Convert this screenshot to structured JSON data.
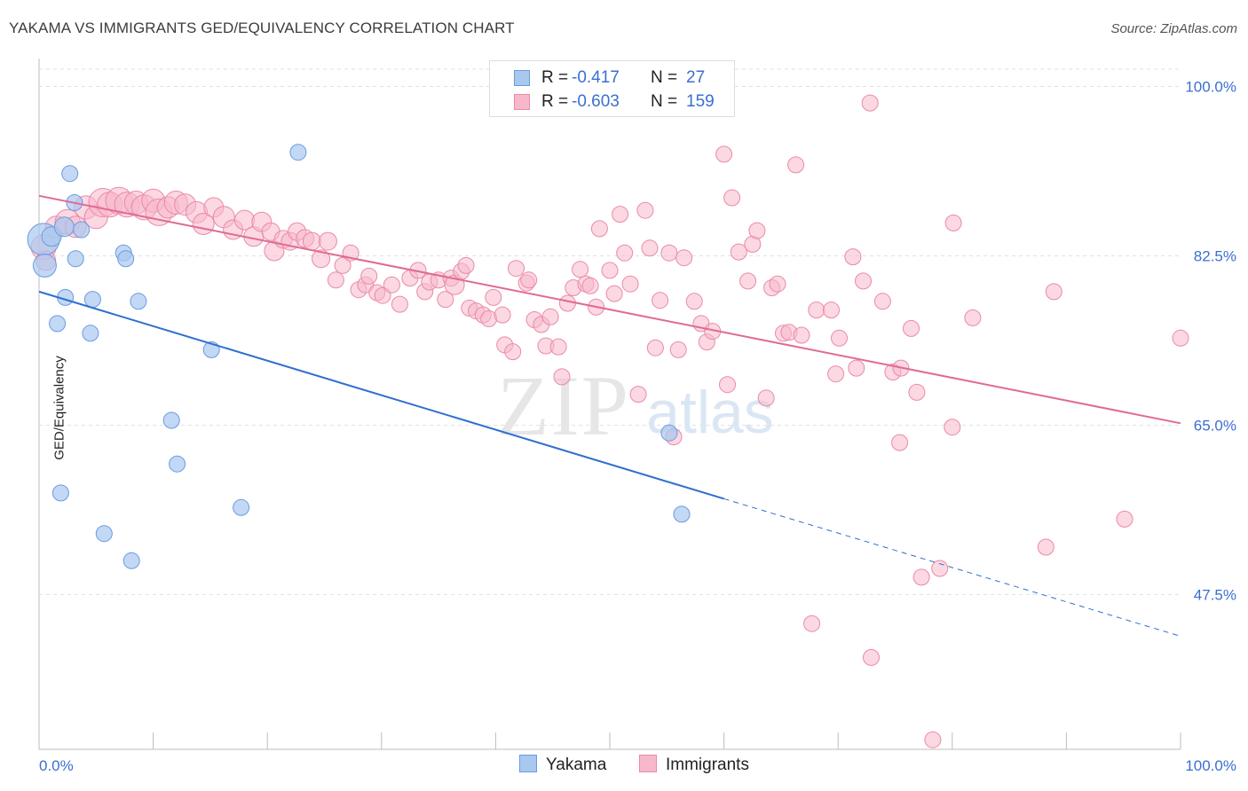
{
  "header": {
    "title": "YAKAMA VS IMMIGRANTS GED/EQUIVALENCY CORRELATION CHART",
    "source": "Source: ZipAtlas.com"
  },
  "colors": {
    "yakama_fill": "#a8c8f0",
    "yakama_stroke": "#6a9be0",
    "yakama_line": "#2f6fd0",
    "immigrants_fill": "#f7b8cb",
    "immigrants_stroke": "#ea8aa8",
    "immigrants_line": "#e06a93",
    "tick_label": "#3a6fd0",
    "grid": "#e2e2e2"
  },
  "stats": {
    "rows": [
      {
        "r_label": "R =",
        "r_value": "-0.417",
        "n_label": "N =",
        "n_value": "27"
      },
      {
        "r_label": "R =",
        "r_value": "-0.603",
        "n_label": "N =",
        "n_value": "159"
      }
    ]
  },
  "legend": {
    "items": [
      "Yakama",
      "Immigrants"
    ]
  },
  "watermark": {
    "zip": "ZIP",
    "atlas": "atlas"
  },
  "chart_data": {
    "type": "scatter",
    "title": "YAKAMA VS IMMIGRANTS GED/EQUIVALENCY CORRELATION CHART",
    "xlabel": "",
    "ylabel": "GED/Equivalency",
    "xlim": [
      0,
      100
    ],
    "ylim": [
      28,
      100
    ],
    "x_tick_labels": [
      "0.0%",
      "100.0%"
    ],
    "y_ticks": [
      47.5,
      65.0,
      82.5,
      100.0
    ],
    "y_tick_labels": [
      "47.5%",
      "65.0%",
      "82.5%",
      "100.0%"
    ],
    "grid": true,
    "legend_position": "bottom-center",
    "series": [
      {
        "name": "Yakama",
        "r": -0.417,
        "n": 27,
        "trend": {
          "x0": 0,
          "y0": 78.8,
          "x1": 60,
          "y1": 57.4,
          "dashed_to_x": 100,
          "dashed_to_y": 43.2
        },
        "points": [
          [
            0.4,
            84.2,
            18
          ],
          [
            0.5,
            81.5,
            13
          ],
          [
            1.1,
            84.5,
            11
          ],
          [
            2.2,
            85.5,
            11
          ],
          [
            2.7,
            91.0,
            9
          ],
          [
            3.1,
            88.0,
            9
          ],
          [
            3.7,
            85.2,
            9
          ],
          [
            3.2,
            82.2,
            9
          ],
          [
            2.3,
            78.2,
            9
          ],
          [
            4.7,
            78.0,
            9
          ],
          [
            1.6,
            75.5,
            9
          ],
          [
            4.5,
            74.5,
            9
          ],
          [
            7.4,
            82.8,
            9
          ],
          [
            7.6,
            82.2,
            9
          ],
          [
            8.7,
            77.8,
            9
          ],
          [
            15.1,
            72.8,
            9
          ],
          [
            22.7,
            93.2,
            9
          ],
          [
            11.6,
            65.5,
            9
          ],
          [
            12.1,
            61.0,
            9
          ],
          [
            1.9,
            58.0,
            9
          ],
          [
            17.7,
            56.5,
            9
          ],
          [
            5.7,
            53.8,
            9
          ],
          [
            8.1,
            51.0,
            9
          ],
          [
            55.2,
            64.2,
            9
          ],
          [
            56.3,
            55.8,
            9
          ]
        ]
      },
      {
        "name": "Immigrants",
        "r": -0.603,
        "n": 159,
        "trend": {
          "x0": 0,
          "y0": 88.7,
          "x1": 100,
          "y1": 65.2
        },
        "points": [
          [
            0.4,
            83.4,
            14
          ],
          [
            0.6,
            82.0,
            11
          ],
          [
            1.5,
            85.5,
            12
          ],
          [
            2.5,
            86.0,
            14
          ],
          [
            3.2,
            85.5,
            12
          ],
          [
            4.1,
            87.5,
            13
          ],
          [
            5.0,
            86.5,
            13
          ],
          [
            5.6,
            88.0,
            16
          ],
          [
            6.2,
            87.8,
            14
          ],
          [
            7.0,
            88.2,
            15
          ],
          [
            7.7,
            87.8,
            14
          ],
          [
            8.5,
            88.0,
            13
          ],
          [
            9.2,
            87.5,
            14
          ],
          [
            10.0,
            88.2,
            13
          ],
          [
            10.5,
            87.0,
            15
          ],
          [
            11.3,
            87.5,
            12
          ],
          [
            12.0,
            88.0,
            13
          ],
          [
            12.8,
            87.8,
            12
          ],
          [
            13.8,
            87.0,
            12
          ],
          [
            14.4,
            85.8,
            12
          ],
          [
            15.3,
            87.5,
            11
          ],
          [
            16.2,
            86.5,
            12
          ],
          [
            17.0,
            85.2,
            11
          ],
          [
            18.0,
            86.2,
            11
          ],
          [
            18.8,
            84.5,
            11
          ],
          [
            19.5,
            86.0,
            11
          ],
          [
            20.3,
            85.0,
            10
          ],
          [
            20.6,
            83.0,
            11
          ],
          [
            21.4,
            84.2,
            10
          ],
          [
            22.0,
            84.0,
            10
          ],
          [
            22.6,
            85.0,
            10
          ],
          [
            23.3,
            84.3,
            10
          ],
          [
            23.9,
            84.0,
            10
          ],
          [
            24.7,
            82.2,
            10
          ],
          [
            25.3,
            84.0,
            10
          ],
          [
            26.0,
            80.0,
            9
          ],
          [
            26.6,
            81.5,
            9
          ],
          [
            27.3,
            82.8,
            9
          ],
          [
            28.0,
            79.0,
            9
          ],
          [
            28.6,
            79.5,
            9
          ],
          [
            28.9,
            80.4,
            9
          ],
          [
            29.6,
            78.7,
            9
          ],
          [
            30.1,
            78.4,
            9
          ],
          [
            30.9,
            79.5,
            9
          ],
          [
            31.6,
            77.5,
            9
          ],
          [
            32.5,
            80.2,
            9
          ],
          [
            33.2,
            81.0,
            9
          ],
          [
            33.8,
            78.8,
            9
          ],
          [
            34.2,
            79.8,
            9
          ],
          [
            35.0,
            80.0,
            9
          ],
          [
            35.6,
            78.0,
            9
          ],
          [
            36.1,
            80.2,
            9
          ],
          [
            36.4,
            79.5,
            11
          ],
          [
            37.0,
            80.9,
            9
          ],
          [
            37.4,
            81.5,
            9
          ],
          [
            37.7,
            77.1,
            9
          ],
          [
            38.3,
            76.8,
            9
          ],
          [
            38.9,
            76.4,
            9
          ],
          [
            39.4,
            76.0,
            9
          ],
          [
            39.8,
            78.2,
            9
          ],
          [
            40.6,
            76.4,
            9
          ],
          [
            40.8,
            73.3,
            9
          ],
          [
            41.5,
            72.6,
            9
          ],
          [
            41.8,
            81.2,
            9
          ],
          [
            42.7,
            79.7,
            9
          ],
          [
            42.9,
            80.0,
            9
          ],
          [
            43.4,
            75.9,
            9
          ],
          [
            44.0,
            75.4,
            9
          ],
          [
            44.4,
            73.2,
            9
          ],
          [
            44.8,
            76.2,
            9
          ],
          [
            45.5,
            73.1,
            9
          ],
          [
            45.8,
            70.0,
            9
          ],
          [
            46.3,
            77.6,
            9
          ],
          [
            46.8,
            79.2,
            9
          ],
          [
            47.4,
            81.1,
            9
          ],
          [
            47.9,
            79.6,
            9
          ],
          [
            48.3,
            79.4,
            9
          ],
          [
            48.8,
            77.2,
            9
          ],
          [
            49.1,
            85.3,
            9
          ],
          [
            50.0,
            81.0,
            9
          ],
          [
            50.4,
            78.6,
            9
          ],
          [
            50.9,
            86.8,
            9
          ],
          [
            51.3,
            82.8,
            9
          ],
          [
            51.8,
            79.6,
            9
          ],
          [
            52.5,
            68.2,
            9
          ],
          [
            53.1,
            87.2,
            9
          ],
          [
            53.5,
            83.3,
            9
          ],
          [
            54.0,
            73.0,
            9
          ],
          [
            54.4,
            77.9,
            9
          ],
          [
            55.2,
            82.8,
            9
          ],
          [
            55.6,
            63.8,
            9
          ],
          [
            56.0,
            72.8,
            9
          ],
          [
            56.5,
            82.3,
            9
          ],
          [
            57.4,
            77.8,
            9
          ],
          [
            58.0,
            75.5,
            9
          ],
          [
            58.5,
            73.6,
            9
          ],
          [
            59.0,
            74.7,
            9
          ],
          [
            60.0,
            93.0,
            9
          ],
          [
            60.3,
            69.2,
            9
          ],
          [
            60.7,
            88.5,
            9
          ],
          [
            61.3,
            82.9,
            9
          ],
          [
            62.1,
            79.9,
            9
          ],
          [
            62.5,
            83.7,
            9
          ],
          [
            62.9,
            85.1,
            9
          ],
          [
            63.7,
            67.8,
            9
          ],
          [
            64.2,
            79.2,
            9
          ],
          [
            64.7,
            79.6,
            9
          ],
          [
            65.2,
            74.5,
            9
          ],
          [
            65.7,
            74.6,
            9
          ],
          [
            66.3,
            91.9,
            9
          ],
          [
            66.8,
            74.3,
            9
          ],
          [
            67.7,
            44.5,
            9
          ],
          [
            68.1,
            76.9,
            9
          ],
          [
            69.4,
            76.9,
            9
          ],
          [
            69.8,
            70.3,
            9
          ],
          [
            70.1,
            74.0,
            9
          ],
          [
            71.3,
            82.4,
            9
          ],
          [
            71.6,
            70.9,
            9
          ],
          [
            72.2,
            79.9,
            9
          ],
          [
            72.8,
            98.3,
            9
          ],
          [
            72.9,
            41.0,
            9
          ],
          [
            73.9,
            77.8,
            9
          ],
          [
            74.8,
            70.5,
            9
          ],
          [
            75.4,
            63.2,
            9
          ],
          [
            75.5,
            70.9,
            9
          ],
          [
            76.4,
            75.0,
            9
          ],
          [
            76.9,
            68.4,
            9
          ],
          [
            77.3,
            49.3,
            9
          ],
          [
            78.3,
            32.5,
            9
          ],
          [
            78.9,
            50.2,
            9
          ],
          [
            80.0,
            64.8,
            9
          ],
          [
            80.1,
            85.9,
            9
          ],
          [
            81.8,
            76.1,
            9
          ],
          [
            88.2,
            52.4,
            9
          ],
          [
            88.9,
            78.8,
            9
          ],
          [
            95.1,
            55.3,
            9
          ],
          [
            100.0,
            74.0,
            9
          ]
        ]
      }
    ]
  }
}
